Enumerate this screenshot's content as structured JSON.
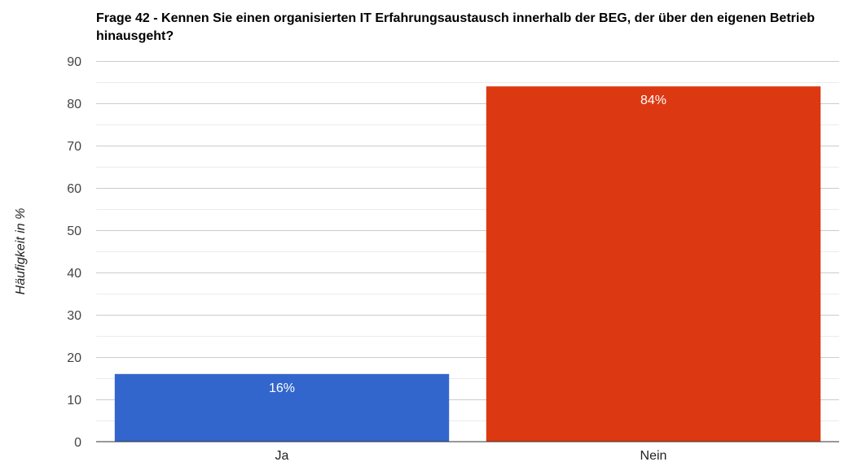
{
  "chart_data": {
    "type": "bar",
    "title": "Frage 42 - Kennen Sie einen organisierten IT Erfahrungsaustausch innerhalb der BEG, der über den eigenen Betrieb hinausgeht?",
    "ylabel": "Häufigkeit in %",
    "xlabel": "",
    "categories": [
      "Ja",
      "Nein"
    ],
    "values": [
      16,
      84
    ],
    "data_labels": [
      "16%",
      "84%"
    ],
    "colors": [
      "#3366cc",
      "#dc3912"
    ],
    "ylim": [
      0,
      90
    ],
    "yticks": [
      0,
      10,
      20,
      30,
      40,
      50,
      60,
      70,
      80,
      90
    ],
    "grid": true,
    "minor_grid": true,
    "legend": "none"
  }
}
